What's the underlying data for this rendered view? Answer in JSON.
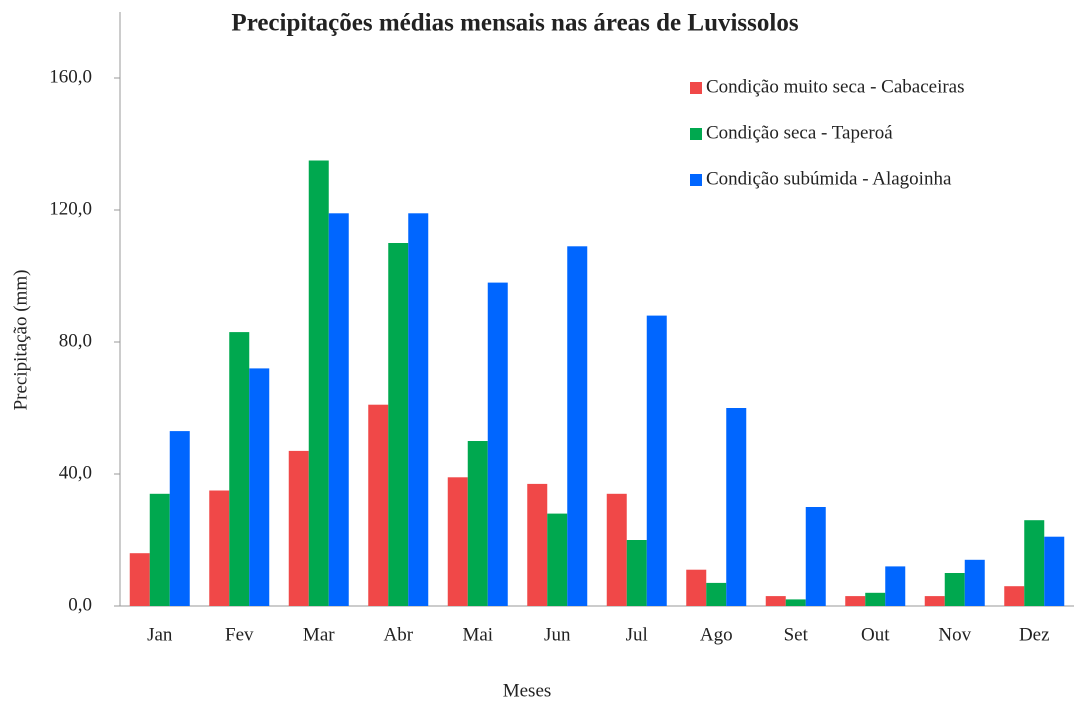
{
  "chart_data": {
    "type": "bar",
    "title": "Precipitações médias mensais nas áreas de Luvissolos",
    "x_label": "Meses",
    "y_label": "Precipitação (mm)",
    "categories": [
      "Jan",
      "Fev",
      "Mar",
      "Abr",
      "Mai",
      "Jun",
      "Jul",
      "Ago",
      "Set",
      "Out",
      "Nov",
      "Dez"
    ],
    "series": [
      {
        "name": "Condição muito seca -  Cabaceiras",
        "color": "#f04848",
        "values": [
          16,
          35,
          47,
          61,
          39,
          37,
          34,
          11,
          3,
          3,
          3,
          6
        ]
      },
      {
        "name": "Condição seca -  Taperoá",
        "color": "#00a84f",
        "values": [
          34,
          83,
          135,
          110,
          50,
          28,
          20,
          7,
          2,
          4,
          10,
          26
        ]
      },
      {
        "name": "Condição subúmida -  Alagoinha",
        "color": "#0066ff",
        "values": [
          53,
          72,
          119,
          119,
          98,
          109,
          88,
          60,
          30,
          12,
          14,
          21
        ]
      }
    ],
    "ylim": [
      0,
      180
    ],
    "yticks": [
      {
        "value": 0,
        "label": "0,0"
      },
      {
        "value": 40,
        "label": "40,0"
      },
      {
        "value": 80,
        "label": "80,0"
      },
      {
        "value": 120,
        "label": "120,0"
      },
      {
        "value": 160,
        "label": "160,0"
      }
    ],
    "legend": "top-right"
  }
}
